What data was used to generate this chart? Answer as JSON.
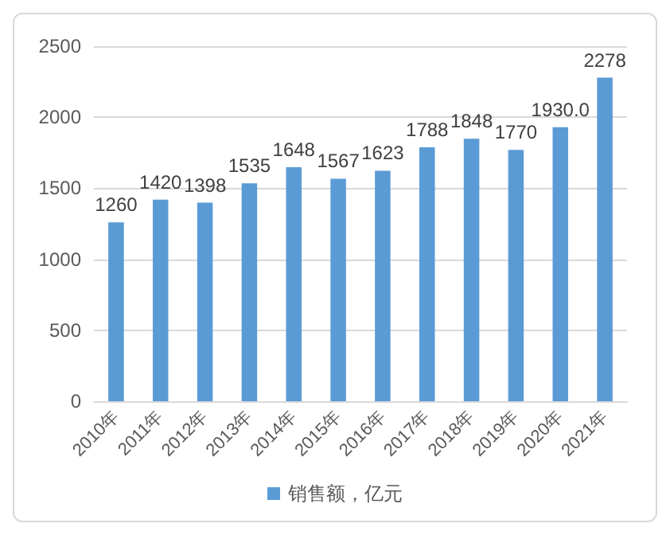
{
  "chart_data": {
    "type": "bar",
    "categories": [
      "2010年",
      "2011年",
      "2012年",
      "2013年",
      "2014年",
      "2015年",
      "2016年",
      "2017年",
      "2018年",
      "2019年",
      "2020年",
      "2021年"
    ],
    "series": [
      {
        "name": "销售额，亿元",
        "color": "#5b9bd5",
        "values": [
          1260,
          1420,
          1398,
          1535,
          1648,
          1567,
          1623,
          1788,
          1848,
          1770,
          1930,
          2278
        ],
        "value_labels": [
          "1260",
          "1420",
          "1398",
          "1535",
          "1648",
          "1567",
          "1623",
          "1788",
          "1848",
          "1770",
          "1930.0",
          "2278"
        ]
      }
    ],
    "ylim": [
      0,
      2500
    ],
    "yticks": [
      0,
      500,
      1000,
      1500,
      2000,
      2500
    ],
    "grid": "y",
    "legend": "bottom"
  }
}
